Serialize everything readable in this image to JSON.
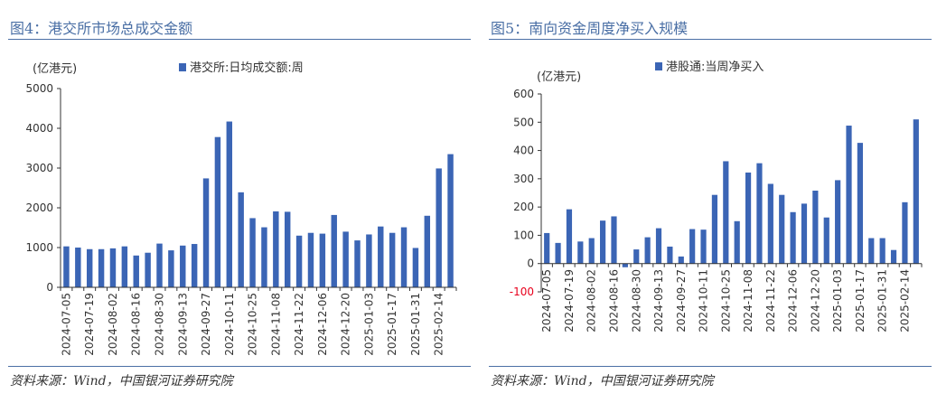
{
  "colors": {
    "bar": "#3b65b5",
    "accent": "#4a6fa5",
    "negative_tick": "#e8001c"
  },
  "left": {
    "title": "图4：港交所市场总成交金额",
    "source": "资料来源：Wind，中国银河证券研究院",
    "chart_data": {
      "type": "bar",
      "unit": "(亿港元)",
      "legend": "港交所:日均成交额:周",
      "ylim": [
        0,
        5000
      ],
      "yticks": [
        0,
        1000,
        2000,
        3000,
        4000,
        5000
      ],
      "x_tick_labels": [
        "2024-07-05",
        "2024-07-19",
        "2024-08-02",
        "2024-08-16",
        "2024-08-30",
        "2024-09-13",
        "2024-09-27",
        "2024-10-11",
        "2024-10-25",
        "2024-11-08",
        "2024-11-22",
        "2024-12-06",
        "2024-12-20",
        "2025-01-03",
        "2025-01-17",
        "2025-01-31",
        "2025-02-14"
      ],
      "values": [
        1030,
        1000,
        960,
        960,
        980,
        1030,
        800,
        870,
        1100,
        930,
        1050,
        1090,
        2740,
        3780,
        4170,
        2390,
        1740,
        1510,
        1910,
        1900,
        1300,
        1370,
        1350,
        1820,
        1400,
        1180,
        1330,
        1530,
        1370,
        1510,
        990,
        1800,
        2990,
        3350
      ]
    }
  },
  "right": {
    "title": "图5：南向资金周度净买入规模",
    "source": "资料来源：Wind，中国银河证券研究院",
    "chart_data": {
      "type": "bar",
      "unit": "(亿港元)",
      "legend": "港股通:当周净买入",
      "ylim": [
        -100,
        600
      ],
      "yticks": [
        -100,
        0,
        100,
        200,
        300,
        400,
        500,
        600
      ],
      "x_tick_labels": [
        "2024-07-05",
        "2024-07-19",
        "2024-08-02",
        "2024-08-16",
        "2024-08-30",
        "2024-09-13",
        "2024-09-27",
        "2024-10-11",
        "2024-10-25",
        "2024-11-08",
        "2024-11-22",
        "2024-12-06",
        "2024-12-20",
        "2025-01-03",
        "2025-01-17",
        "2025-01-31",
        "2025-02-14"
      ],
      "values": [
        108,
        73,
        192,
        78,
        90,
        152,
        167,
        -13,
        50,
        93,
        125,
        60,
        25,
        122,
        120,
        243,
        362,
        150,
        322,
        355,
        282,
        243,
        182,
        212,
        258,
        163,
        295,
        488,
        427,
        90,
        90,
        48,
        217,
        510
      ]
    }
  }
}
